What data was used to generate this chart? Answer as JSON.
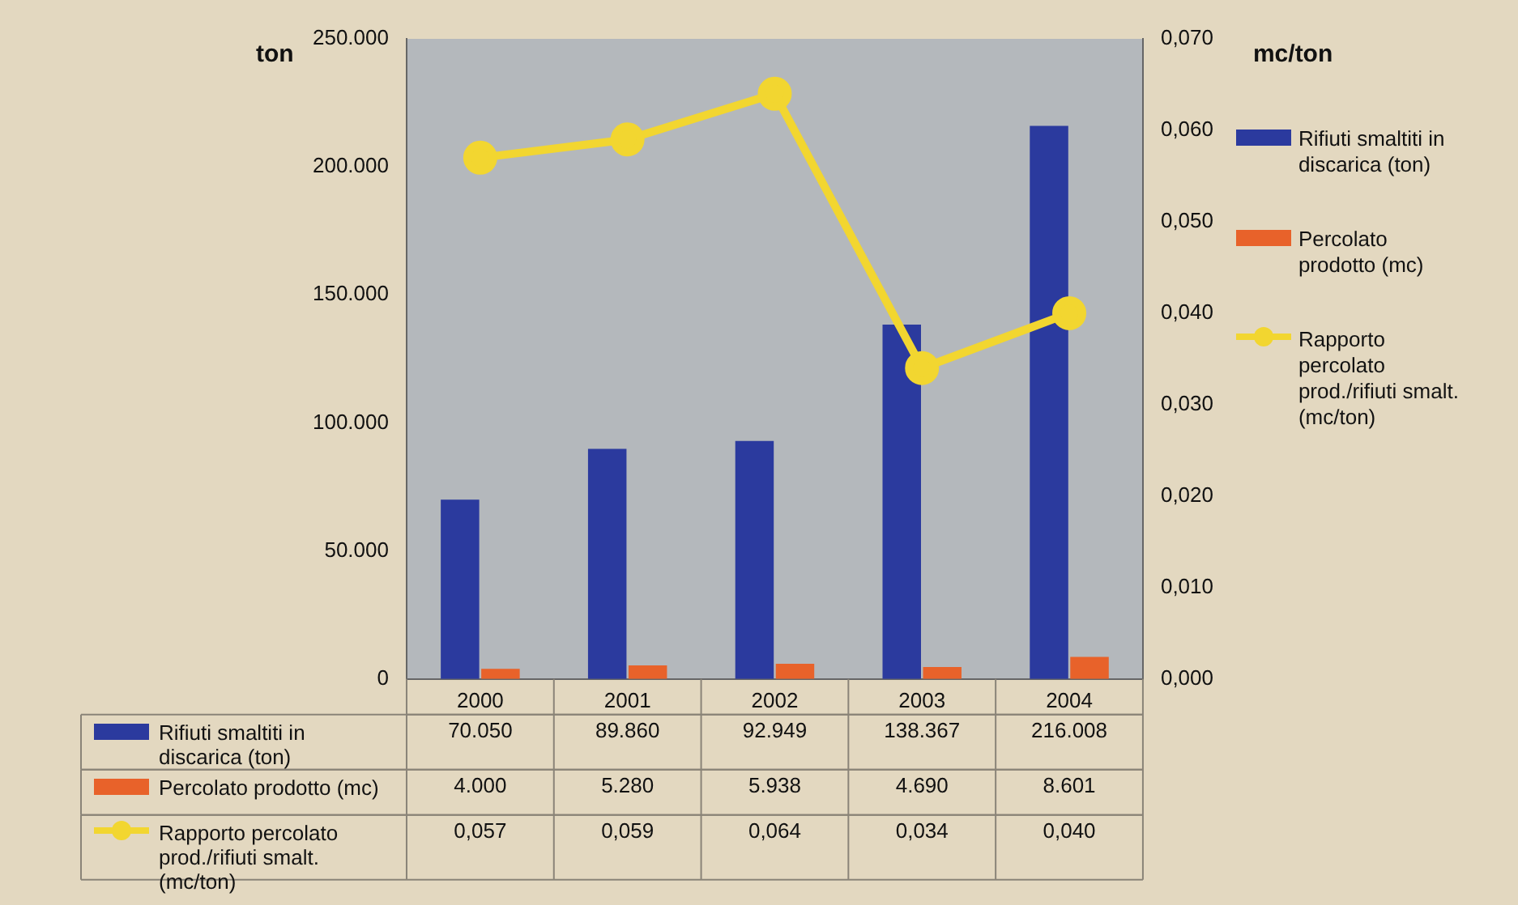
{
  "chart_data": {
    "type": "bar",
    "ylabel": "ton",
    "y2label": "mc/ton",
    "categories": [
      "2000",
      "2001",
      "2002",
      "2003",
      "2004"
    ],
    "series": [
      {
        "name": "Rifiuti smaltiti in discarica (ton)",
        "color": "#2b3a9e",
        "values": [
          70050,
          89860,
          92949,
          138367,
          216008
        ],
        "value_labels": [
          "70.050",
          "89.860",
          "92.949",
          "138.367",
          "216.008"
        ]
      },
      {
        "name": "Percolato prodotto (mc)",
        "color": "#e8622a",
        "values": [
          4000,
          5280,
          5938,
          4690,
          8601
        ],
        "value_labels": [
          "4.000",
          "5.280",
          "5.938",
          "4.690",
          "8.601"
        ]
      },
      {
        "name": "Rapporto percolato prod./rifiuti smalt. (mc/ton)",
        "type": "line",
        "axis": "y2",
        "color": "#f2d630",
        "marker": "circle",
        "values": [
          0.057,
          0.059,
          0.064,
          0.034,
          0.04
        ],
        "value_labels": [
          "0,057",
          "0,059",
          "0,064",
          "0,034",
          "0,040"
        ]
      }
    ],
    "ylim": [
      0,
      250000
    ],
    "yticks": [
      {
        "value": 0,
        "label": "0"
      },
      {
        "value": 50000,
        "label": "50.000"
      },
      {
        "value": 100000,
        "label": "100.000"
      },
      {
        "value": 150000,
        "label": "150.000"
      },
      {
        "value": 200000,
        "label": "200.000"
      },
      {
        "value": 250000,
        "label": "250.000"
      }
    ],
    "y2lim": [
      0,
      0.07
    ],
    "y2ticks": [
      {
        "value": 0,
        "label": "0,000"
      },
      {
        "value": 0.01,
        "label": "0,010"
      },
      {
        "value": 0.02,
        "label": "0,020"
      },
      {
        "value": 0.03,
        "label": "0,030"
      },
      {
        "value": 0.04,
        "label": "0,040"
      },
      {
        "value": 0.05,
        "label": "0,050"
      },
      {
        "value": 0.06,
        "label": "0,060"
      },
      {
        "value": 0.07,
        "label": "0,070"
      }
    ],
    "grid": false,
    "legend": "right"
  }
}
